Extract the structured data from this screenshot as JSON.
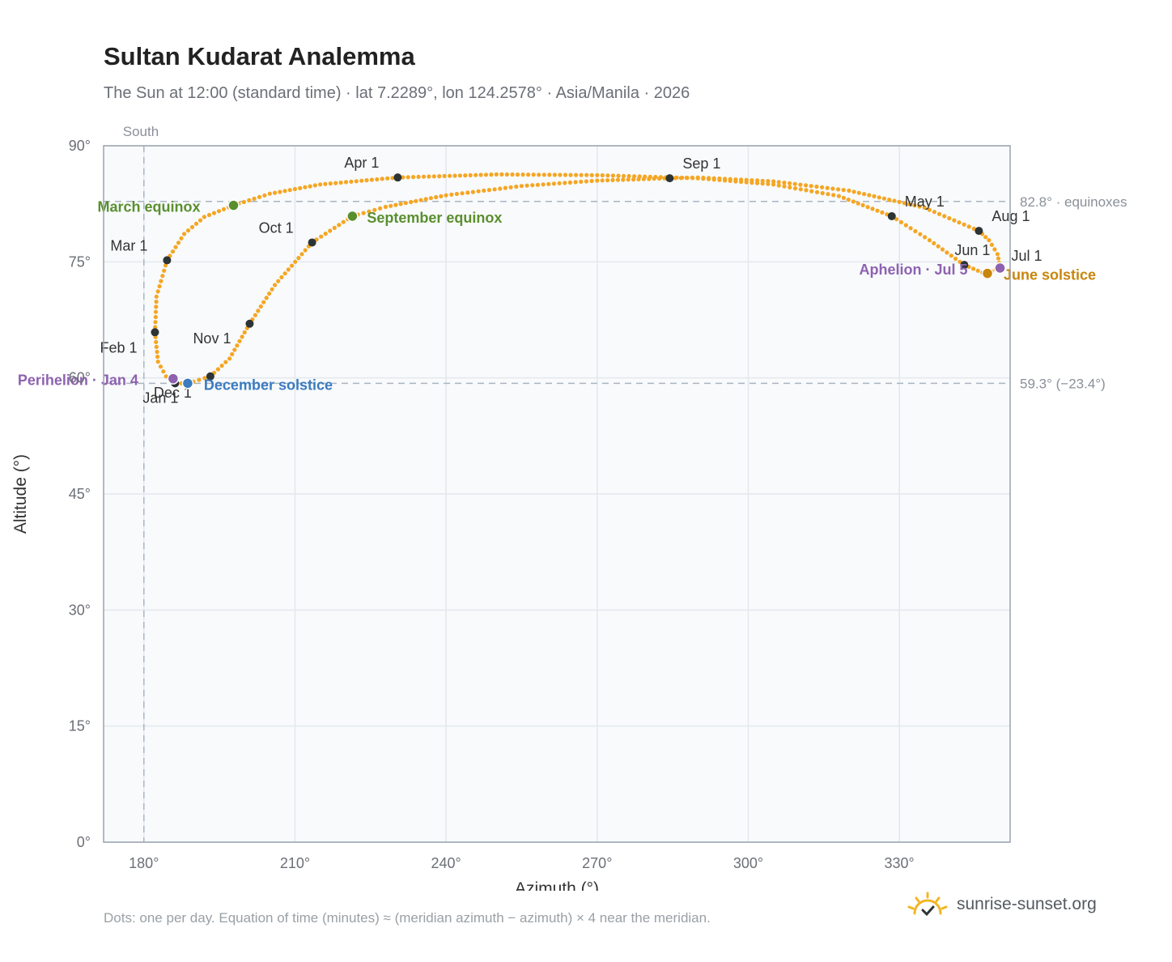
{
  "title": "Sultan Kudarat Analemma",
  "subtitle": "The Sun at 12:00 (standard time) · lat 7.2289°, lon 124.2578° · Asia/Manila · 2026",
  "footnote": "Dots: one per day. Equation of time (minutes) ≈ (meridian azimuth − azimuth) × 4 near the meridian.",
  "brand": {
    "name": "sunrise-sunset.org",
    "icon": "sun-logo-icon"
  },
  "colors": {
    "curve": "#f5a623",
    "month": "#2d3436",
    "equinox": "#5a8f2e",
    "june": "#c8860d",
    "december": "#3b7bbf",
    "apsis": "#8e62b0",
    "grid": "#e3e8ee",
    "plot_bg": "#f8fafc",
    "frame": "#9aa3ae",
    "ref": "#aab5c0"
  },
  "chart_data": {
    "type": "scatter",
    "xlabel": "Azimuth (°)",
    "ylabel": "Altitude (°)",
    "xlim": [
      172,
      352
    ],
    "ylim": [
      0,
      90
    ],
    "xticks": [
      180,
      210,
      240,
      270,
      300,
      330
    ],
    "xtick_labels": [
      "180°",
      "210°",
      "240°",
      "270°",
      "300°",
      "330°"
    ],
    "yticks": [
      0,
      15,
      30,
      45,
      60,
      75,
      90
    ],
    "ytick_labels": [
      "0°",
      "15°",
      "30°",
      "45°",
      "60°",
      "75°",
      "90°"
    ],
    "grid": true,
    "meridian": {
      "azimuth": 180,
      "label": "South"
    },
    "reference_lines": [
      {
        "altitude": 82.8,
        "label": "82.8° · equinoxes"
      },
      {
        "altitude": 59.3,
        "label": "59.3° (−23.4°)"
      }
    ],
    "month_markers": [
      {
        "label": "Jan 1",
        "az": 186.2,
        "alt": 59.3
      },
      {
        "label": "Feb 1",
        "az": 182.2,
        "alt": 65.9
      },
      {
        "label": "Mar 1",
        "az": 184.6,
        "alt": 75.2
      },
      {
        "label": "Apr 1",
        "az": 230.4,
        "alt": 85.9
      },
      {
        "label": "May 1",
        "az": 328.5,
        "alt": 80.9
      },
      {
        "label": "Jun 1",
        "az": 342.9,
        "alt": 74.6
      },
      {
        "label": "Jul 1",
        "az": 350.0,
        "alt": 74.3
      },
      {
        "label": "Aug 1",
        "az": 345.8,
        "alt": 79.0
      },
      {
        "label": "Sep 1",
        "az": 284.4,
        "alt": 85.8
      },
      {
        "label": "Oct 1",
        "az": 213.4,
        "alt": 77.5
      },
      {
        "label": "Nov 1",
        "az": 201.0,
        "alt": 67.0
      },
      {
        "label": "Dec 1",
        "az": 193.2,
        "alt": 60.2
      }
    ],
    "events": [
      {
        "label": "March equinox",
        "az": 197.8,
        "alt": 82.3,
        "color_key": "equinox"
      },
      {
        "label": "September equinox",
        "az": 221.4,
        "alt": 80.9,
        "color_key": "equinox"
      },
      {
        "label": "June solstice",
        "az": 347.5,
        "alt": 73.5,
        "color_key": "june"
      },
      {
        "label": "December solstice",
        "az": 188.7,
        "alt": 59.3,
        "color_key": "december"
      },
      {
        "label": "Perihelion · Jan 4",
        "az": 185.8,
        "alt": 59.9,
        "color_key": "apsis"
      },
      {
        "label": "Aphelion · Jul 5",
        "az": 350.0,
        "alt": 74.2,
        "color_key": "apsis"
      }
    ],
    "curve_path": [
      [
        186.2,
        59.3
      ],
      [
        184.4,
        60.2
      ],
      [
        182.8,
        62.1
      ],
      [
        182.2,
        65.9
      ],
      [
        182.5,
        70.5
      ],
      [
        184.6,
        75.2
      ],
      [
        188.0,
        78.6
      ],
      [
        192.0,
        80.8
      ],
      [
        197.8,
        82.3
      ],
      [
        205.0,
        83.8
      ],
      [
        215.0,
        85.0
      ],
      [
        230.4,
        85.9
      ],
      [
        250.0,
        86.3
      ],
      [
        270.0,
        86.2
      ],
      [
        290.0,
        85.8
      ],
      [
        305.0,
        85.0
      ],
      [
        318.0,
        83.5
      ],
      [
        328.5,
        80.9
      ],
      [
        336.0,
        77.8
      ],
      [
        342.9,
        74.6
      ],
      [
        346.5,
        73.6
      ],
      [
        347.5,
        73.5
      ],
      [
        350.0,
        74.3
      ],
      [
        349.5,
        76.0
      ],
      [
        347.8,
        77.8
      ],
      [
        345.8,
        79.0
      ],
      [
        335.0,
        82.0
      ],
      [
        320.0,
        84.2
      ],
      [
        305.0,
        85.4
      ],
      [
        290.0,
        85.9
      ],
      [
        284.4,
        85.8
      ],
      [
        270.0,
        85.5
      ],
      [
        255.0,
        84.8
      ],
      [
        240.0,
        83.6
      ],
      [
        228.0,
        82.1
      ],
      [
        221.4,
        80.9
      ],
      [
        213.4,
        77.5
      ],
      [
        206.0,
        72.0
      ],
      [
        201.0,
        67.0
      ],
      [
        197.0,
        62.5
      ],
      [
        193.2,
        60.2
      ],
      [
        188.7,
        59.3
      ],
      [
        186.2,
        59.3
      ]
    ]
  }
}
